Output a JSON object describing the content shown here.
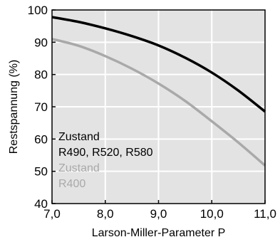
{
  "chart_data": {
    "type": "line",
    "title": "",
    "xlabel": "Larson-Miller-Parameter P",
    "ylabel": "Restspannung (%)",
    "xlim": [
      7.0,
      11.0
    ],
    "ylim": [
      40,
      100
    ],
    "x_ticks": [
      7.0,
      8.0,
      9.0,
      10.0,
      11.0
    ],
    "x_tick_labels": [
      "7,0",
      "8,0",
      "9,0",
      "10,0",
      "11,0"
    ],
    "y_ticks": [
      40,
      50,
      60,
      70,
      80,
      90,
      100
    ],
    "y_tick_labels": [
      "40",
      "50",
      "60",
      "70",
      "80",
      "90",
      "100"
    ],
    "grid": true,
    "plot_background": "#e3e3e3",
    "grid_color": "#ffffff",
    "series": [
      {
        "color": "#000000",
        "x": [
          7.0,
          7.5,
          8.0,
          8.5,
          9.0,
          9.5,
          10.0,
          10.5,
          11.0
        ],
        "y": [
          97.8,
          96.3,
          94.3,
          91.9,
          89.0,
          85.2,
          80.6,
          75.0,
          68.5
        ]
      },
      {
        "color": "#a9a9a9",
        "x": [
          7.0,
          7.5,
          8.0,
          8.5,
          9.0,
          9.5,
          10.0,
          10.5,
          11.0
        ],
        "y": [
          91.0,
          88.9,
          85.7,
          81.8,
          77.2,
          71.8,
          65.5,
          58.9,
          51.8
        ]
      }
    ],
    "annotations": [
      {
        "lines": [
          "Zustand",
          "R490, R520, R580"
        ],
        "color": "#000000"
      },
      {
        "lines": [
          "Zustand",
          "R400"
        ],
        "color": "#a9a9a9"
      }
    ]
  }
}
